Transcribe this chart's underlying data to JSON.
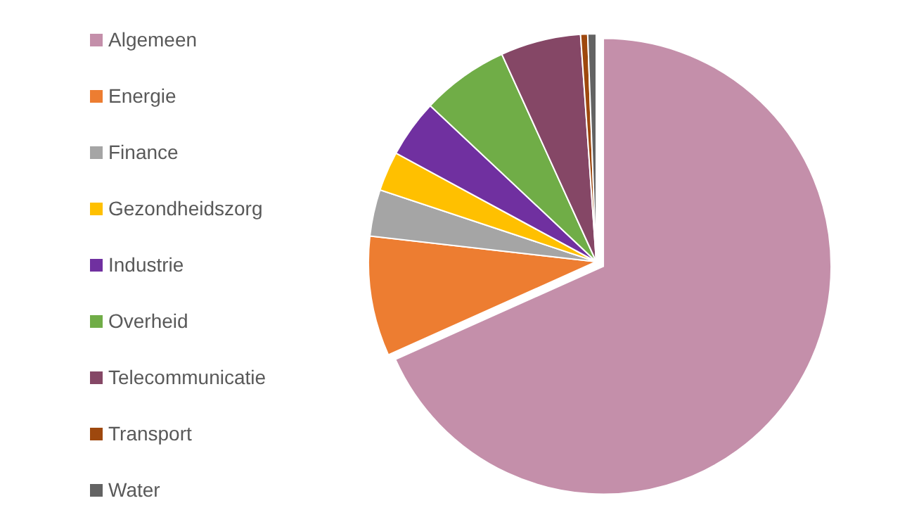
{
  "chart_data": {
    "type": "pie",
    "categories": [
      "Algemeen",
      "Energie",
      "Finance",
      "Gezondheidszorg",
      "Industrie",
      "Overheid",
      "Telecommunicatie",
      "Transport",
      "Water"
    ],
    "values": [
      68.3,
      8.5,
      3.3,
      2.8,
      4.1,
      6.2,
      5.7,
      0.5,
      0.6
    ],
    "colors": [
      "#c48faa",
      "#ed7d31",
      "#a5a5a5",
      "#ffc000",
      "#7030a0",
      "#70ad47",
      "#854766",
      "#9e480e",
      "#636363"
    ],
    "legend": "left"
  }
}
